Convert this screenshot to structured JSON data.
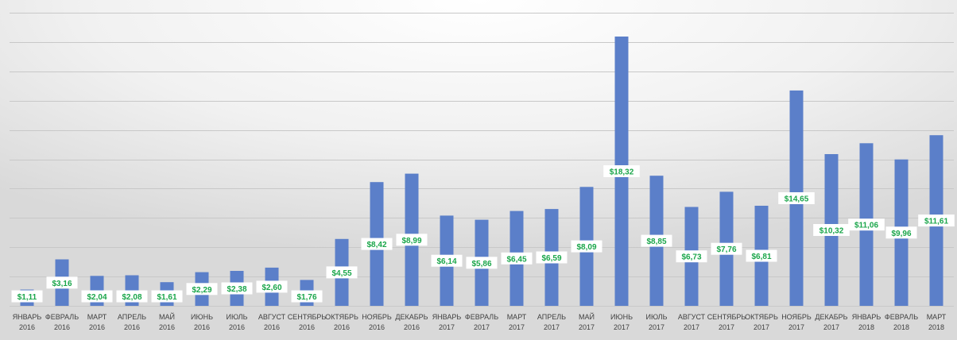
{
  "chart_data": {
    "type": "bar",
    "categories": [
      [
        "ЯНВАРЬ",
        "2016"
      ],
      [
        "ФЕВРАЛЬ",
        "2016"
      ],
      [
        "МАРТ",
        "2016"
      ],
      [
        "АПРЕЛЬ",
        "2016"
      ],
      [
        "МАЙ",
        "2016"
      ],
      [
        "ИЮНЬ",
        "2016"
      ],
      [
        "ИЮЛЬ",
        "2016"
      ],
      [
        "АВГУСТ",
        "2016"
      ],
      [
        "СЕНТЯБРЬ",
        "2016"
      ],
      [
        "ОКТЯБРЬ",
        "2016"
      ],
      [
        "НОЯБРЬ",
        "2016"
      ],
      [
        "ДЕКАБРЬ",
        "2016"
      ],
      [
        "ЯНВАРЬ",
        "2017"
      ],
      [
        "ФЕВРАЛЬ",
        "2017"
      ],
      [
        "МАРТ",
        "2017"
      ],
      [
        "АПРЕЛЬ",
        "2017"
      ],
      [
        "МАЙ",
        "2017"
      ],
      [
        "ИЮНЬ",
        "2017"
      ],
      [
        "ИЮЛЬ",
        "2017"
      ],
      [
        "АВГУСТ",
        "2017"
      ],
      [
        "СЕНТЯБРЬ",
        "2017"
      ],
      [
        "ОКТЯБРЬ",
        "2017"
      ],
      [
        "НОЯБРЬ",
        "2017"
      ],
      [
        "ДЕКАБРЬ",
        "2017"
      ],
      [
        "ЯНВАРЬ",
        "2018"
      ],
      [
        "ФЕВРАЛЬ",
        "2018"
      ],
      [
        "МАРТ",
        "2018"
      ]
    ],
    "values": [
      1.11,
      3.16,
      2.04,
      2.08,
      1.61,
      2.29,
      2.38,
      2.6,
      1.76,
      4.55,
      8.42,
      8.99,
      6.14,
      5.86,
      6.45,
      6.59,
      8.09,
      18.32,
      8.85,
      6.73,
      7.76,
      6.81,
      14.65,
      10.32,
      11.06,
      9.96,
      11.61
    ],
    "value_labels": [
      "$1,11",
      "$3,16",
      "$2,04",
      "$2,08",
      "$1,61",
      "$2,29",
      "$2,38",
      "$2,60",
      "$1,76",
      "$4,55",
      "$8,42",
      "$8,99",
      "$6,14",
      "$5,86",
      "$6,45",
      "$6,59",
      "$8,09",
      "$18,32",
      "$8,85",
      "$6,73",
      "$7,76",
      "$6,81",
      "$14,65",
      "$10,32",
      "$11,06",
      "$9,96",
      "$11,61"
    ],
    "ylim": [
      0,
      20
    ],
    "grid": true,
    "bar_color": "#5b7fc9",
    "label_color": "#1aa64a",
    "grid_color": "#c8c8c8"
  }
}
